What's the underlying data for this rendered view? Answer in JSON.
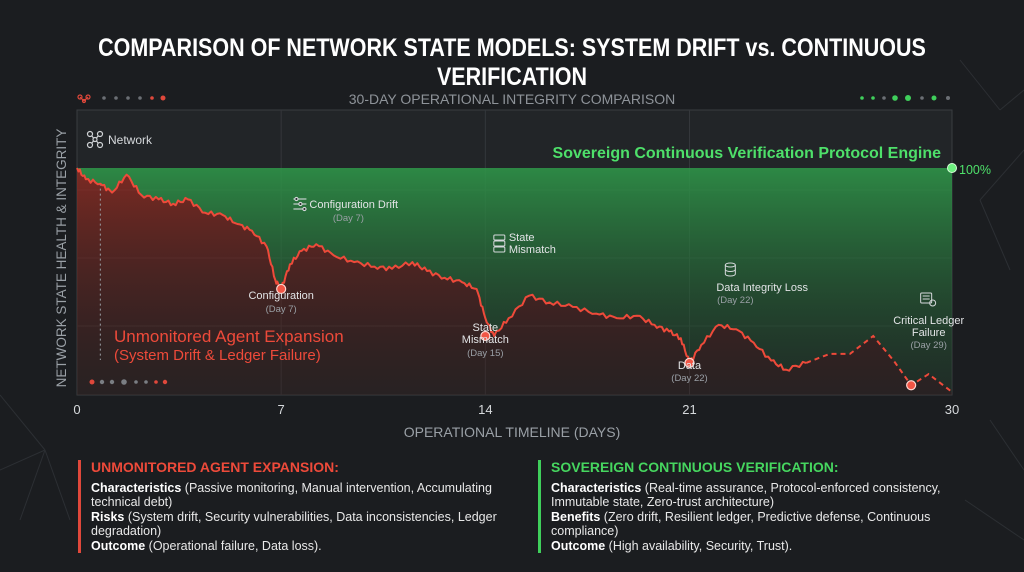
{
  "title": "COMPARISON OF NETWORK STATE MODELS: SYSTEM DRIFT vs. CONTINUOUS VERIFICATION",
  "chart_data": {
    "type": "line",
    "subtitle": "30-DAY OPERATIONAL INTEGRITY COMPARISON",
    "xlabel": "OPERATIONAL TIMELINE (DAYS)",
    "ylabel": "NETWORK STATE HEALTH & INTEGRITY",
    "xlim": [
      0,
      30
    ],
    "ylim": [
      0,
      100
    ],
    "xticks": [
      "0",
      "7",
      "14",
      "21",
      "30"
    ],
    "xtick_values": [
      0,
      7,
      14,
      21,
      30
    ],
    "grid": true,
    "network_label": "Network",
    "series": [
      {
        "name": "Sovereign Continuous Verification Protocol Engine",
        "color": "#3fcf5b",
        "x": [
          0,
          30
        ],
        "y": [
          100,
          100
        ],
        "end_label": "100%"
      },
      {
        "name": "Unmonitored Agent Expansion",
        "name_sub": "(System Drift & Ledger Failure)",
        "color": "#e0483b",
        "x": [
          0,
          0.3,
          0.8,
          1.2,
          1.7,
          2.2,
          2.8,
          3.3,
          3.8,
          4.4,
          5.0,
          5.5,
          6.0,
          6.5,
          6.8,
          7.0,
          7.3,
          7.7,
          8.2,
          8.8,
          9.5,
          10.2,
          10.8,
          11.5,
          12.0,
          12.6,
          13.2,
          13.7,
          14.0,
          14.3,
          14.8,
          15.5,
          16.2,
          17.0,
          17.8,
          18.5,
          19.2,
          19.8,
          20.3,
          20.7,
          21.0,
          21.4,
          22.0,
          22.6,
          23.2,
          23.8,
          24.3,
          25.0
        ],
        "y": [
          100,
          95,
          93,
          89,
          97,
          88,
          86,
          84,
          86,
          80,
          79,
          75,
          72,
          65,
          50,
          46,
          57,
          63,
          66,
          61,
          58,
          56,
          55,
          58,
          54,
          51,
          49,
          46,
          33,
          25,
          33,
          43,
          40,
          38,
          35,
          33,
          34,
          30,
          27,
          24,
          13,
          21,
          30,
          28,
          22,
          14,
          10,
          13
        ],
        "dashed_x": [
          25.0,
          25.8,
          26.5,
          27.3,
          28.0,
          28.6,
          29.2,
          30.0
        ],
        "dashed_y": [
          13,
          17,
          17,
          25,
          14,
          3,
          8,
          0
        ]
      }
    ],
    "annotations": [
      {
        "id": "config-drift",
        "label": "Configuration Drift",
        "sub": "(Day 7)",
        "icon": "sliders-icon",
        "x": 7.9,
        "y": 74
      },
      {
        "id": "config",
        "label": "Configuration",
        "sub": "(Day 7)",
        "x": 7,
        "y": 46,
        "marker": true
      },
      {
        "id": "state-mismatch-top",
        "label": "State",
        "label2": "Mismatch",
        "icon": "server-icon",
        "x": 14.6,
        "y": 62
      },
      {
        "id": "state-mismatch",
        "label": "State",
        "label2": "Mismatch",
        "sub": "(Day 15)",
        "x": 14,
        "y": 25,
        "marker": true
      },
      {
        "id": "data-integrity-loss",
        "label": "Data Integrity Loss",
        "sub": "(Day 22)",
        "icon": "database-icon",
        "x": 22.4,
        "y": 38
      },
      {
        "id": "data",
        "label": "Data",
        "sub": "(Day 22)",
        "x": 21,
        "y": 13,
        "marker": true
      },
      {
        "id": "critical-ledger",
        "label": "Critical Ledger",
        "label2": "Failure",
        "sub": "(Day 29)",
        "icon": "ledger-gear-icon",
        "x": 29.2,
        "y": 29
      },
      {
        "id": "critical-end",
        "x": 28.6,
        "y": 3,
        "marker": true
      }
    ]
  },
  "legend": {
    "left": {
      "heading": "UNMONITORED AGENT EXPANSION:",
      "lines": [
        {
          "key": "Characteristics",
          "text": " (Passive monitoring, Manual intervention, Accumulating technical debt)"
        },
        {
          "key": "Risks",
          "text": " (System drift, Security vulnerabilities, Data inconsistencies, Ledger degradation)"
        },
        {
          "key": "Outcome",
          "text": " (Operational failure, Data loss)."
        }
      ]
    },
    "right": {
      "heading": "SOVEREIGN CONTINUOUS VERIFICATION:",
      "lines": [
        {
          "key": "Characteristics",
          "text": " (Real-time assurance, Protocol-enforced consistency, Immutable state, Zero-trust architecture)"
        },
        {
          "key": "Benefits",
          "text": " (Zero drift, Resilient ledger, Predictive defense, Continuous compliance)"
        },
        {
          "key": "Outcome",
          "text": " (High availability, Security, Trust)."
        }
      ]
    }
  }
}
